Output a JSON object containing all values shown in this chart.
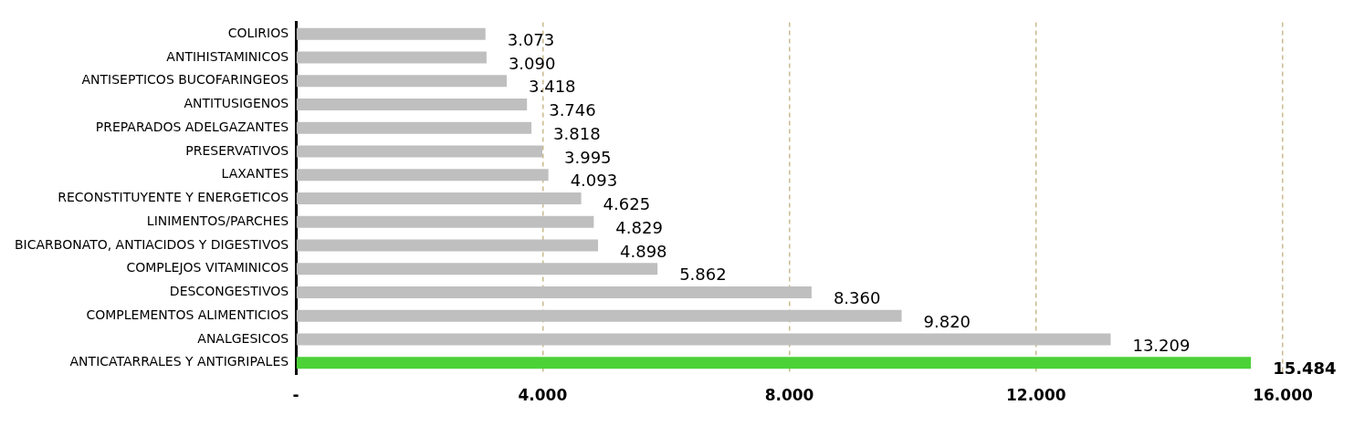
{
  "chart_data": {
    "type": "bar",
    "orientation": "horizontal",
    "categories": [
      "COLIRIOS",
      "ANTIHISTAMINICOS",
      "ANTISEPTICOS BUCOFARINGEOS",
      "ANTITUSIGENOS",
      "PREPARADOS ADELGAZANTES",
      "PRESERVATIVOS",
      "LAXANTES",
      "RECONSTITUYENTE Y ENERGETICOS",
      "LINIMENTOS/PARCHES",
      "BICARBONATO, ANTIACIDOS Y DIGESTIVOS",
      "COMPLEJOS VITAMINICOS",
      "DESCONGESTIVOS",
      "COMPLEMENTOS ALIMENTICIOS",
      "ANALGESICOS",
      "ANTICATARRALES Y ANTIGRIPALES"
    ],
    "values": [
      3073,
      3090,
      3418,
      3746,
      3818,
      3995,
      4093,
      4625,
      4829,
      4898,
      5862,
      8360,
      9820,
      13209,
      15484
    ],
    "colors": [
      "#bfbfbf",
      "#bfbfbf",
      "#bfbfbf",
      "#bfbfbf",
      "#bfbfbf",
      "#bfbfbf",
      "#bfbfbf",
      "#bfbfbf",
      "#bfbfbf",
      "#bfbfbf",
      "#bfbfbf",
      "#bfbfbf",
      "#bfbfbf",
      "#bfbfbf",
      "#4cd137"
    ],
    "value_labels": [
      "3.073",
      "3.090",
      "3.418",
      "3.746",
      "3.818",
      "3.995",
      "4.093",
      "4.625",
      "4.829",
      "4.898",
      "5.862",
      "8.360",
      "9.820",
      "13.209",
      "15.484"
    ],
    "xlim": [
      0,
      16000
    ],
    "xticks": [
      {
        "value": 0,
        "label": "-"
      },
      {
        "value": 4000,
        "label": "4.000"
      },
      {
        "value": 8000,
        "label": "8.000"
      },
      {
        "value": 12000,
        "label": "12.000"
      },
      {
        "value": 16000,
        "label": "16.000"
      }
    ],
    "grid": "x",
    "legend": false
  }
}
